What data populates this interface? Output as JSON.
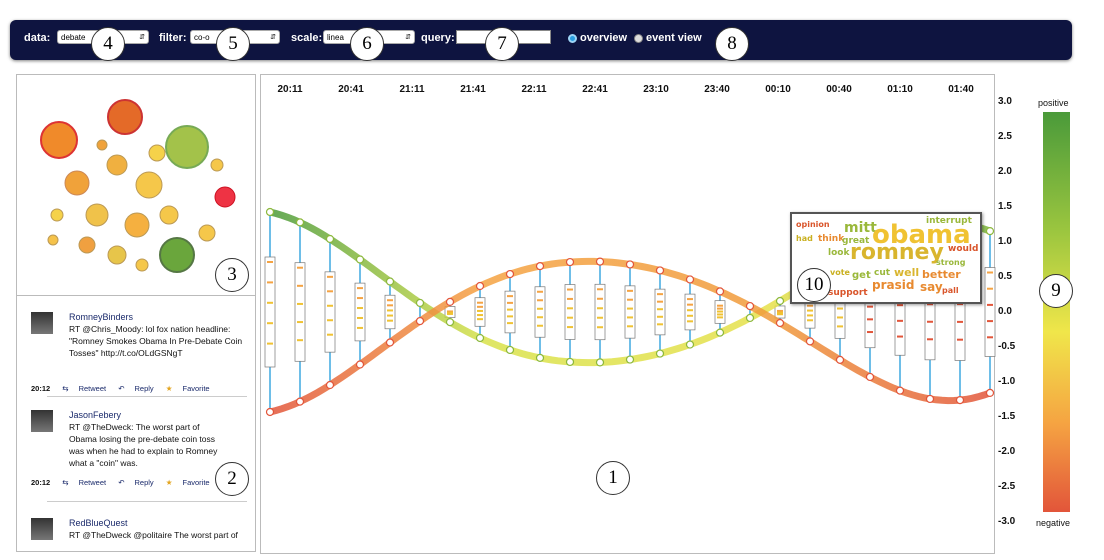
{
  "toolbar": {
    "data_label": "data:",
    "data_value": "debate",
    "filter_label": "filter:",
    "filter_value": "co-o",
    "scale_label": "scale:",
    "scale_value": "linea",
    "query_label": "query:",
    "query_value": "",
    "overview_label": "overview",
    "eventview_label": "event view",
    "selected_view": "overview"
  },
  "callouts": [
    "1",
    "2",
    "3",
    "4",
    "5",
    "6",
    "7",
    "8",
    "9",
    "10"
  ],
  "time_axis": [
    "20:11",
    "20:41",
    "21:11",
    "21:41",
    "22:11",
    "22:41",
    "23:10",
    "23:40",
    "00:10",
    "00:40",
    "01:10",
    "01:40"
  ],
  "y_axis": [
    "3.0",
    "2.5",
    "2.0",
    "1.5",
    "1.0",
    "0.5",
    "0.0",
    "-0.5",
    "-1.0",
    "-1.5",
    "-2.0",
    "-2.5",
    "-3.0"
  ],
  "legend": {
    "top": "positive",
    "bottom": "negative"
  },
  "tweets": [
    {
      "user": "RomneyBinders",
      "text": "RT @Chris_Moody: lol fox nation headline: \"Romney Smokes Obama In Pre-Debate Coin Tosses\" http://t.co/OLdGSNgT",
      "time": "20:12",
      "retweet": "Retweet",
      "reply": "Reply",
      "favorite": "Favorite"
    },
    {
      "user": "JasonFebery",
      "text": "RT @TheDweck: The worst part of Obama losing the pre-debate coin toss was when he had to explain to Romney what a \"coin\" was.",
      "time": "20:12",
      "retweet": "Retweet",
      "reply": "Reply",
      "favorite": "Favorite"
    },
    {
      "user": "RedBlueQuest",
      "text": "RT @TheDweck @politaire The worst part of",
      "time": "",
      "retweet": "",
      "reply": "",
      "favorite": ""
    }
  ],
  "wordcloud": [
    "opinion",
    "mitt",
    "interrupt",
    "had",
    "think",
    "great",
    "obama",
    "would",
    "look",
    "romney",
    "strong",
    "cut",
    "well",
    "better",
    "prasid",
    "say",
    "pall",
    "support",
    "get",
    "vote"
  ],
  "colors": {
    "toolbar_bg": "#0e1440",
    "positive": "#4a9a3a",
    "neutral": "#f0e64a",
    "negative": "#e2553a",
    "stem": "#3fa8e0"
  }
}
